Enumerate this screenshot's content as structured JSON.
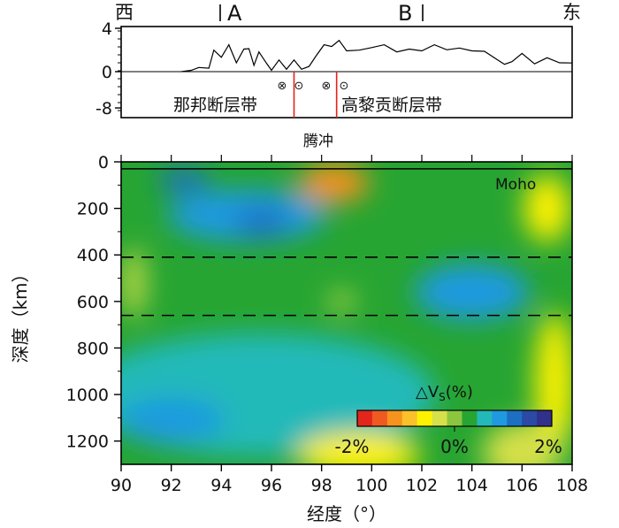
{
  "chart_data": [
    {
      "type": "line",
      "y_ticks": [
        4,
        0,
        -8
      ],
      "ylim": [
        -8,
        4
      ],
      "xlim": [
        90,
        108
      ],
      "top_labels": {
        "west": "西",
        "a": "A",
        "b": "B",
        "east": "东"
      },
      "fault_labels": {
        "left": "那邦断层带",
        "right": "高黎贡断层带"
      },
      "fault_symbols": [
        "⊗",
        "⊙",
        "⊗",
        "⊙"
      ],
      "faults_lon": [
        96.9,
        98.6
      ],
      "place_label": "腾冲",
      "series": [
        {
          "x": [
            92.4,
            92.8,
            93.1,
            93.5,
            93.7,
            94.0,
            94.3,
            94.6,
            94.9,
            95.1,
            95.3,
            95.5,
            95.8,
            96.0,
            96.3,
            96.6,
            96.9,
            97.2,
            97.5,
            97.8,
            98.1,
            98.4,
            98.7,
            99.0,
            99.5,
            100.0,
            100.5,
            101.0,
            101.5,
            102.0,
            102.5,
            103.0,
            103.5,
            104.0,
            104.5,
            105.0,
            105.3,
            105.6,
            106.0,
            106.5,
            107.0,
            107.5,
            108.0
          ],
          "values": [
            0.0,
            0.3,
            0.2,
            0.5,
            1.8,
            1.5,
            2.3,
            1.0,
            1.9,
            2.3,
            0.4,
            2.0,
            0.6,
            0.3,
            0.9,
            0.4,
            0.9,
            0.4,
            0.3,
            1.7,
            2.3,
            2.5,
            2.7,
            2.1,
            1.8,
            2.4,
            2.3,
            2.0,
            1.9,
            2.1,
            2.3,
            2.2,
            2.0,
            2.1,
            1.7,
            1.3,
            0.5,
            1.1,
            1.5,
            0.9,
            1.1,
            1.0,
            0.8
          ]
        }
      ]
    },
    {
      "type": "heatmap",
      "xlabel": "经度（°）",
      "ylabel": "深度（km）",
      "x_ticks": [
        90,
        92,
        94,
        96,
        98,
        100,
        102,
        104,
        106,
        108
      ],
      "y_ticks": [
        0,
        200,
        400,
        600,
        800,
        1000,
        1200
      ],
      "xlim": [
        90,
        108
      ],
      "ylim": [
        1300,
        0
      ],
      "moho_label": "Moho",
      "moho_depth_km": 30,
      "discontinuities_km": [
        410,
        660
      ],
      "colorbar": {
        "title": "△V",
        "title_sub": "S",
        "title_unit": "(%)",
        "tick_labels": [
          "-2%",
          "0%",
          "2%"
        ],
        "range": [
          -2,
          2
        ],
        "colors": [
          "#e3261c",
          "#ef5a23",
          "#f6921e",
          "#fbc12a",
          "#fff200",
          "#d5e04a",
          "#8cc63f",
          "#27a532",
          "#24b9b9",
          "#1f9ae0",
          "#1d6fc2",
          "#2a4aa5",
          "#31308a"
        ]
      },
      "anomalies": [
        {
          "sign": "fast",
          "lon": 95.0,
          "depth_km": 230,
          "dvs": 1.0
        },
        {
          "sign": "fast",
          "lon": 92.5,
          "depth_km": 80,
          "dvs": 1.4
        },
        {
          "sign": "fast",
          "lon": 95.6,
          "depth_km": 260,
          "dvs": 1.4
        },
        {
          "sign": "fast",
          "lon": 104.0,
          "depth_km": 560,
          "dvs": 0.9
        },
        {
          "sign": "fast",
          "lon": 95.5,
          "depth_km": 1000,
          "dvs": 0.7
        },
        {
          "sign": "fast",
          "lon": 92.0,
          "depth_km": 1110,
          "dvs": 0.9
        },
        {
          "sign": "slow",
          "lon": 98.5,
          "depth_km": 90,
          "dvs": -1.4
        },
        {
          "sign": "slow",
          "lon": 107.0,
          "depth_km": 200,
          "dvs": -0.6
        },
        {
          "sign": "slow",
          "lon": 98.8,
          "depth_km": 600,
          "dvs": -0.2
        },
        {
          "sign": "slow",
          "lon": 90.5,
          "depth_km": 520,
          "dvs": -0.3
        },
        {
          "sign": "slow",
          "lon": 107.3,
          "depth_km": 950,
          "dvs": -0.8
        },
        {
          "sign": "slow",
          "lon": 99.5,
          "depth_km": 1260,
          "dvs": -0.6
        },
        {
          "sign": "slow",
          "lon": 106.0,
          "depth_km": 1250,
          "dvs": -0.4
        }
      ]
    }
  ]
}
